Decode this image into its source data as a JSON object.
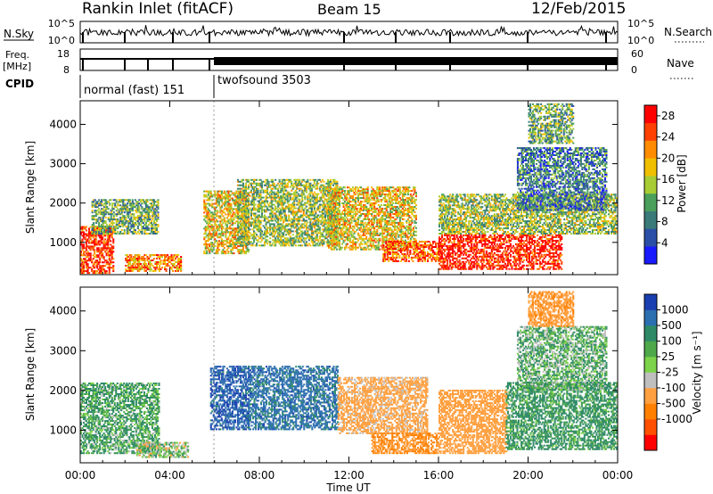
{
  "header": {
    "station": "Rankin Inlet (fitACF)",
    "beam": "Beam 15",
    "date": "12/Feb/2015"
  },
  "status_panels": {
    "nsky_label": "N.Sky",
    "nsearch_label": "N.Search",
    "freq_label": "Freq.",
    "freq_unit": "[MHz]",
    "nave_label": "Nave",
    "cpid_label": "CPID",
    "noise_ticks": [
      "10^5",
      "10^0"
    ],
    "noise_ticks_right": [
      "10^5",
      "10^0"
    ],
    "freq_ticks": [
      "18",
      "8"
    ],
    "nave_ticks": [
      "60",
      "0"
    ],
    "cpid_modes": [
      {
        "name": "normal (fast) 151",
        "start_hour": 0,
        "end_hour": 5.9
      },
      {
        "name": "twofsound 3503",
        "start_hour": 5.9,
        "end_hour": 24
      }
    ]
  },
  "chart_data": [
    {
      "type": "heatmap",
      "name": "power",
      "xlabel": "Time UT",
      "ylabel": "Slant Range [km]",
      "x_unit": "hours UT",
      "xlim": [
        0,
        24
      ],
      "ylim": [
        180,
        4600
      ],
      "yticks": [
        1000,
        2000,
        3000,
        4000
      ],
      "xticks": [
        "00:00",
        "04:00",
        "08:00",
        "12:00",
        "16:00",
        "20:00",
        "00:00"
      ],
      "colorbar": {
        "label": "Power [dB]",
        "ticks": [
          4,
          8,
          12,
          16,
          20,
          24,
          28
        ],
        "range": [
          0,
          30
        ],
        "colors": [
          "#1a1aff",
          "#2b4fa6",
          "#3a7a78",
          "#4aa05a",
          "#a8cc33",
          "#f0c000",
          "#ff8c00",
          "#ff4000",
          "#ff0000"
        ]
      },
      "echo_regions": [
        {
          "t": [
            0.0,
            1.5
          ],
          "r": [
            200,
            1400
          ],
          "value": 26
        },
        {
          "t": [
            0.5,
            3.5
          ],
          "r": [
            1200,
            2100
          ],
          "value": 12
        },
        {
          "t": [
            2.0,
            4.5
          ],
          "r": [
            250,
            700
          ],
          "value": 22
        },
        {
          "t": [
            5.5,
            7.5
          ],
          "r": [
            700,
            2300
          ],
          "value": 18
        },
        {
          "t": [
            7.0,
            11.5
          ],
          "r": [
            900,
            2600
          ],
          "value": 14
        },
        {
          "t": [
            11.0,
            15.0
          ],
          "r": [
            800,
            2400
          ],
          "value": 18
        },
        {
          "t": [
            13.5,
            16.0
          ],
          "r": [
            500,
            1000
          ],
          "value": 24
        },
        {
          "t": [
            16.0,
            21.5
          ],
          "r": [
            300,
            1200
          ],
          "value": 28
        },
        {
          "t": [
            16.0,
            24.0
          ],
          "r": [
            1200,
            2200
          ],
          "value": 14
        },
        {
          "t": [
            19.5,
            23.5
          ],
          "r": [
            1800,
            3400
          ],
          "value": 8
        },
        {
          "t": [
            20.0,
            22.0
          ],
          "r": [
            3500,
            4500
          ],
          "value": 12
        }
      ]
    },
    {
      "type": "heatmap",
      "name": "velocity",
      "xlabel": "Time UT",
      "ylabel": "Slant Range [km]",
      "x_unit": "hours UT",
      "xlim": [
        0,
        24
      ],
      "ylim": [
        180,
        4600
      ],
      "yticks": [
        1000,
        2000,
        3000,
        4000
      ],
      "xticks": [
        "00:00",
        "04:00",
        "08:00",
        "12:00",
        "16:00",
        "20:00",
        "00:00"
      ],
      "colorbar": {
        "label": "Velocity [m s⁻¹]",
        "ticks": [
          "1000",
          "500",
          "100",
          "25",
          "-25",
          "-100",
          "-500",
          "-1000"
        ],
        "colors": [
          "#1a3fb0",
          "#2c6fb0",
          "#2e8a66",
          "#4fa84a",
          "#7dd34a",
          "#bfbfbf",
          "#ffa040",
          "#ff8000",
          "#ff5000",
          "#ff0000"
        ]
      },
      "echo_regions": [
        {
          "t": [
            0.0,
            3.5
          ],
          "r": [
            400,
            2200
          ],
          "value": 100
        },
        {
          "t": [
            2.5,
            4.8
          ],
          "r": [
            300,
            700
          ],
          "value": 0
        },
        {
          "t": [
            5.8,
            7.5
          ],
          "r": [
            1000,
            2600
          ],
          "value": 900
        },
        {
          "t": [
            7.5,
            11.5
          ],
          "r": [
            1000,
            2600
          ],
          "value": 700
        },
        {
          "t": [
            11.5,
            15.5
          ],
          "r": [
            900,
            2300
          ],
          "value": -200
        },
        {
          "t": [
            13.0,
            16.0
          ],
          "r": [
            400,
            900
          ],
          "value": -500
        },
        {
          "t": [
            16.0,
            19.0
          ],
          "r": [
            400,
            2000
          ],
          "value": -300
        },
        {
          "t": [
            19.0,
            24.0
          ],
          "r": [
            500,
            2200
          ],
          "value": 150
        },
        {
          "t": [
            19.5,
            23.5
          ],
          "r": [
            2000,
            3600
          ],
          "value": 60
        },
        {
          "t": [
            20.0,
            22.0
          ],
          "r": [
            3600,
            4500
          ],
          "value": -400
        }
      ]
    }
  ]
}
